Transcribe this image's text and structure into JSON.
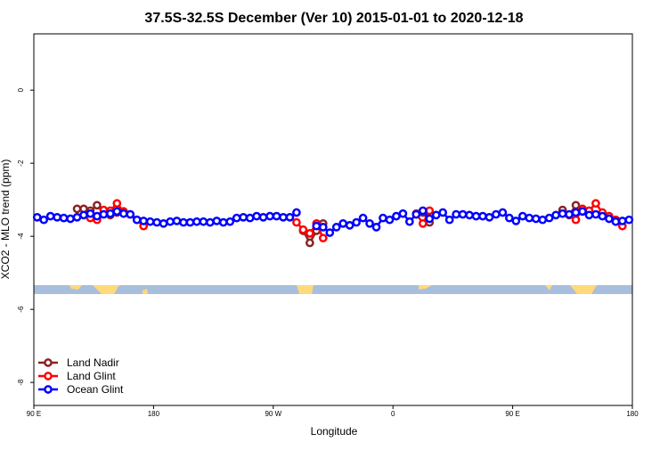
{
  "chart_data": {
    "type": "line",
    "title": "37.5S-32.5S December (Ver 10)   2015-01-01 to 2020-12-18",
    "xlabel": "Longitude",
    "ylabel": "XCO2 - MLO trend (ppm)",
    "xlim": [
      90,
      540
    ],
    "ylim": [
      -8.63,
      1.54
    ],
    "xticks": [
      {
        "value": 90,
        "label": "90 E"
      },
      180,
      {
        "value": 270,
        "label": "90 W"
      },
      {
        "value": 360,
        "label": "0"
      },
      {
        "value": 450,
        "label": "90 E"
      },
      {
        "value": 540,
        "label": "180"
      }
    ],
    "yticks": [
      0,
      -2,
      -4,
      -6,
      -8
    ],
    "legend": "bottom-left",
    "x": [
      92.5,
      97.5,
      102.5,
      107.5,
      112.5,
      117.5,
      122.5,
      127.5,
      132.5,
      137.5,
      142.5,
      147.5,
      152.5,
      157.5,
      162.5,
      167.5,
      172.5,
      177.5,
      182.5,
      187.5,
      192.5,
      197.5,
      202.5,
      207.5,
      212.5,
      217.5,
      222.5,
      227.5,
      232.5,
      237.5,
      242.5,
      247.5,
      252.5,
      257.5,
      262.5,
      267.5,
      272.5,
      277.5,
      282.5,
      287.5,
      292.5,
      297.5,
      302.5,
      307.5,
      312.5,
      317.5,
      322.5,
      327.5,
      332.5,
      337.5,
      342.5,
      347.5,
      352.5,
      357.5,
      362.5,
      367.5,
      372.5,
      377.5,
      382.5,
      387.5,
      392.5,
      397.5,
      402.5,
      407.5,
      412.5,
      417.5,
      422.5,
      427.5,
      432.5,
      437.5,
      442.5,
      447.5,
      452.5,
      457.5,
      462.5,
      467.5,
      472.5,
      477.5,
      482.5,
      487.5,
      492.5,
      497.5,
      502.5,
      507.5,
      512.5,
      517.5,
      522.5,
      527.5,
      532.5,
      537.5
    ],
    "series": [
      {
        "name": "Land Nadir",
        "color": "#8b2323",
        "values": [
          null,
          null,
          null,
          null,
          null,
          null,
          -3.25,
          -3.25,
          -3.3,
          -3.15,
          -3.35,
          -3.42,
          -3.35,
          null,
          null,
          null,
          null,
          null,
          null,
          null,
          null,
          null,
          null,
          null,
          null,
          null,
          null,
          null,
          null,
          null,
          null,
          null,
          null,
          null,
          null,
          null,
          null,
          null,
          null,
          null,
          -3.85,
          -4.18,
          -3.85,
          -3.65,
          null,
          null,
          null,
          null,
          null,
          null,
          null,
          null,
          null,
          null,
          null,
          null,
          null,
          -3.4,
          -3.35,
          -3.62,
          null,
          null,
          null,
          null,
          null,
          null,
          null,
          null,
          null,
          null,
          null,
          null,
          null,
          null,
          null,
          null,
          null,
          null,
          null,
          -3.28,
          -3.42,
          -3.15,
          -3.3,
          -3.35,
          null,
          null,
          null,
          null,
          null,
          null
        ]
      },
      {
        "name": "Land Glint",
        "color": "#ff0000",
        "values": [
          null,
          null,
          null,
          null,
          null,
          null,
          null,
          null,
          -3.5,
          -3.55,
          -3.28,
          -3.3,
          -3.1,
          -3.32,
          -3.4,
          -3.55,
          -3.72,
          null,
          null,
          null,
          null,
          null,
          null,
          null,
          null,
          null,
          null,
          null,
          null,
          null,
          null,
          null,
          null,
          null,
          null,
          null,
          null,
          null,
          null,
          -3.62,
          -3.82,
          -3.92,
          -3.65,
          -4.05,
          null,
          null,
          null,
          null,
          null,
          null,
          null,
          null,
          null,
          null,
          null,
          null,
          null,
          -3.38,
          -3.65,
          -3.3,
          null,
          null,
          null,
          null,
          null,
          null,
          null,
          null,
          null,
          null,
          null,
          null,
          null,
          null,
          null,
          null,
          null,
          null,
          null,
          null,
          null,
          -3.55,
          -3.25,
          -3.3,
          -3.1,
          -3.35,
          -3.45,
          -3.55,
          -3.72,
          null
        ]
      },
      {
        "name": "Ocean Glint",
        "color": "#0000ff",
        "values": [
          -3.48,
          -3.55,
          -3.45,
          -3.48,
          -3.5,
          -3.52,
          -3.48,
          -3.42,
          -3.38,
          -3.45,
          -3.4,
          -3.38,
          -3.32,
          -3.38,
          -3.4,
          -3.55,
          -3.58,
          -3.6,
          -3.62,
          -3.65,
          -3.6,
          -3.58,
          -3.62,
          -3.62,
          -3.6,
          -3.6,
          -3.62,
          -3.58,
          -3.62,
          -3.6,
          -3.5,
          -3.48,
          -3.5,
          -3.45,
          -3.48,
          -3.45,
          -3.45,
          -3.48,
          -3.48,
          -3.35,
          null,
          null,
          -3.72,
          -3.75,
          -3.9,
          -3.75,
          -3.65,
          -3.7,
          -3.62,
          -3.5,
          -3.65,
          -3.75,
          -3.5,
          -3.55,
          -3.45,
          -3.38,
          -3.6,
          -3.4,
          -3.3,
          -3.52,
          -3.42,
          -3.35,
          -3.55,
          -3.4,
          -3.4,
          -3.42,
          -3.45,
          -3.45,
          -3.48,
          -3.4,
          -3.35,
          -3.5,
          -3.58,
          -3.45,
          -3.5,
          -3.52,
          -3.55,
          -3.5,
          -3.42,
          -3.38,
          -3.4,
          -3.35,
          -3.32,
          -3.42,
          -3.4,
          -3.45,
          -3.52,
          -3.6,
          -3.58,
          -3.55
        ]
      }
    ]
  }
}
